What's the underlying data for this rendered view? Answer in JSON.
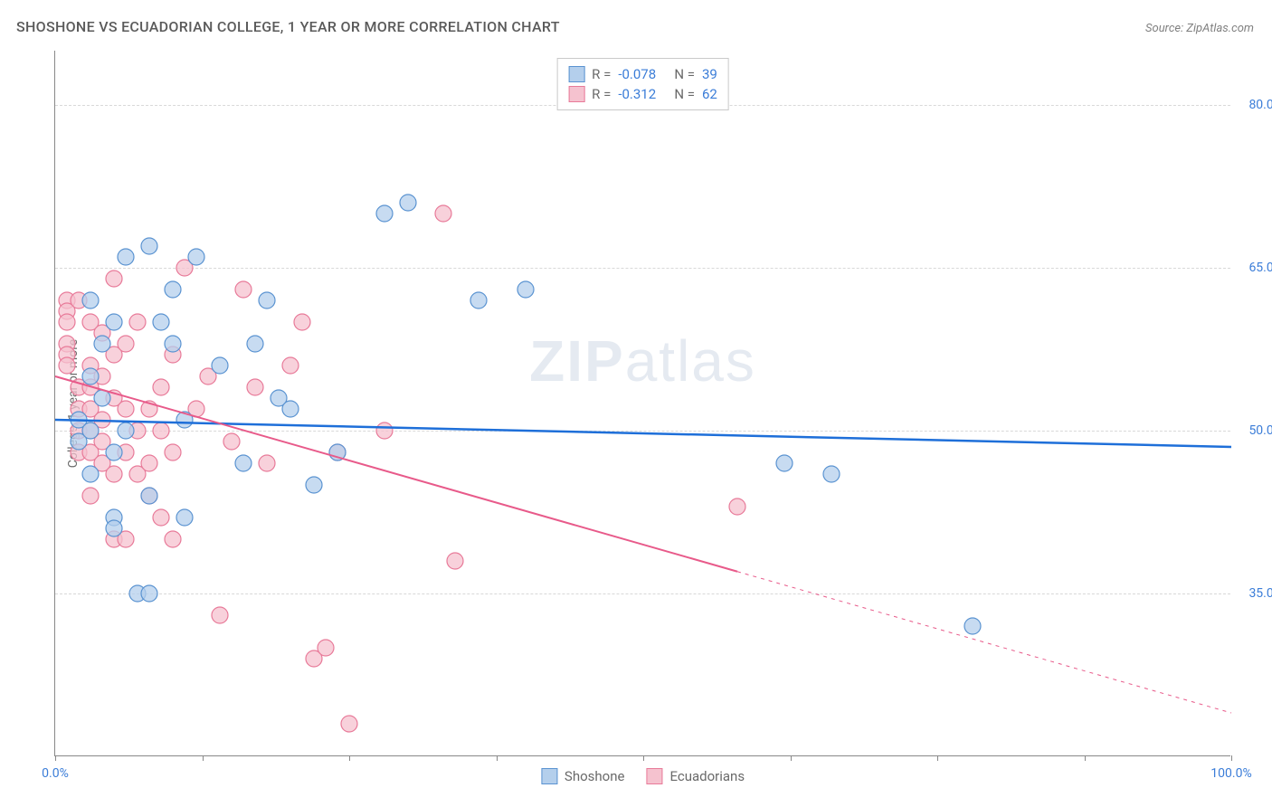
{
  "title": "SHOSHONE VS ECUADORIAN COLLEGE, 1 YEAR OR MORE CORRELATION CHART",
  "source": "Source: ZipAtlas.com",
  "y_axis_label": "College, 1 year or more",
  "watermark": {
    "zip": "ZIP",
    "atlas": "atlas"
  },
  "chart": {
    "type": "scatter",
    "xlim": [
      0,
      100
    ],
    "ylim": [
      20,
      85
    ],
    "x_ticks": [
      0,
      12.5,
      25,
      37.5,
      50,
      62.5,
      75,
      87.5,
      100
    ],
    "x_tick_labels": {
      "0": "0.0%",
      "100": "100.0%"
    },
    "y_gridlines": [
      35,
      50,
      65,
      80
    ],
    "y_tick_labels": {
      "35": "35.0%",
      "50": "50.0%",
      "65": "65.0%",
      "80": "80.0%"
    },
    "background_color": "#ffffff",
    "grid_color": "#d8d8d8",
    "series": [
      {
        "name": "Shoshone",
        "marker_fill": "#b4cfec",
        "marker_stroke": "#5a93d1",
        "marker_radius": 9,
        "marker_opacity": 0.75,
        "line_color": "#1e6fd9",
        "line_width": 2.5,
        "R": "-0.078",
        "N": "39",
        "trend": {
          "x1": 0,
          "y1": 51,
          "x2": 100,
          "y2": 48.5,
          "dashed_from_x": null
        },
        "points": [
          [
            2,
            51
          ],
          [
            2,
            49
          ],
          [
            3,
            55
          ],
          [
            3,
            62
          ],
          [
            3,
            50
          ],
          [
            3,
            46
          ],
          [
            4,
            58
          ],
          [
            4,
            53
          ],
          [
            5,
            60
          ],
          [
            5,
            48
          ],
          [
            5,
            42
          ],
          [
            5,
            41
          ],
          [
            6,
            66
          ],
          [
            6,
            50
          ],
          [
            7,
            35
          ],
          [
            8,
            35
          ],
          [
            8,
            67
          ],
          [
            8,
            44
          ],
          [
            9,
            60
          ],
          [
            10,
            63
          ],
          [
            10,
            58
          ],
          [
            11,
            51
          ],
          [
            11,
            42
          ],
          [
            12,
            66
          ],
          [
            14,
            56
          ],
          [
            16,
            47
          ],
          [
            17,
            58
          ],
          [
            18,
            62
          ],
          [
            19,
            53
          ],
          [
            20,
            52
          ],
          [
            22,
            45
          ],
          [
            24,
            48
          ],
          [
            28,
            70
          ],
          [
            30,
            71
          ],
          [
            36,
            62
          ],
          [
            40,
            63
          ],
          [
            62,
            47
          ],
          [
            66,
            46
          ],
          [
            78,
            32
          ]
        ]
      },
      {
        "name": "Ecuadorians",
        "marker_fill": "#f5c2cf",
        "marker_stroke": "#e87a99",
        "marker_radius": 9,
        "marker_opacity": 0.75,
        "line_color": "#e85a8a",
        "line_width": 2,
        "R": "-0.312",
        "N": "62",
        "trend": {
          "x1": 0,
          "y1": 55,
          "x2": 100,
          "y2": 24,
          "dashed_from_x": 58
        },
        "points": [
          [
            1,
            62
          ],
          [
            1,
            61
          ],
          [
            1,
            60
          ],
          [
            1,
            58
          ],
          [
            1,
            57
          ],
          [
            1,
            56
          ],
          [
            2,
            62
          ],
          [
            2,
            54
          ],
          [
            2,
            52
          ],
          [
            2,
            50
          ],
          [
            2,
            48
          ],
          [
            3,
            60
          ],
          [
            3,
            56
          ],
          [
            3,
            54
          ],
          [
            3,
            52
          ],
          [
            3,
            50
          ],
          [
            3,
            48
          ],
          [
            3,
            44
          ],
          [
            4,
            59
          ],
          [
            4,
            55
          ],
          [
            4,
            51
          ],
          [
            4,
            49
          ],
          [
            4,
            47
          ],
          [
            5,
            64
          ],
          [
            5,
            57
          ],
          [
            5,
            53
          ],
          [
            5,
            46
          ],
          [
            5,
            40
          ],
          [
            6,
            58
          ],
          [
            6,
            52
          ],
          [
            6,
            48
          ],
          [
            6,
            40
          ],
          [
            7,
            60
          ],
          [
            7,
            50
          ],
          [
            7,
            46
          ],
          [
            8,
            52
          ],
          [
            8,
            47
          ],
          [
            8,
            44
          ],
          [
            9,
            54
          ],
          [
            9,
            50
          ],
          [
            9,
            42
          ],
          [
            10,
            57
          ],
          [
            10,
            48
          ],
          [
            10,
            40
          ],
          [
            11,
            65
          ],
          [
            12,
            52
          ],
          [
            13,
            55
          ],
          [
            14,
            33
          ],
          [
            15,
            49
          ],
          [
            16,
            63
          ],
          [
            17,
            54
          ],
          [
            18,
            47
          ],
          [
            20,
            56
          ],
          [
            21,
            60
          ],
          [
            22,
            29
          ],
          [
            23,
            30
          ],
          [
            24,
            48
          ],
          [
            25,
            23
          ],
          [
            28,
            50
          ],
          [
            33,
            70
          ],
          [
            34,
            38
          ],
          [
            58,
            43
          ]
        ]
      }
    ]
  },
  "legend_top": {
    "r_label": "R =",
    "n_label": "N ="
  },
  "legend_bottom": [
    {
      "label": "Shoshone",
      "fill": "#b4cfec",
      "stroke": "#5a93d1"
    },
    {
      "label": "Ecuadorians",
      "fill": "#f5c2cf",
      "stroke": "#e87a99"
    }
  ]
}
